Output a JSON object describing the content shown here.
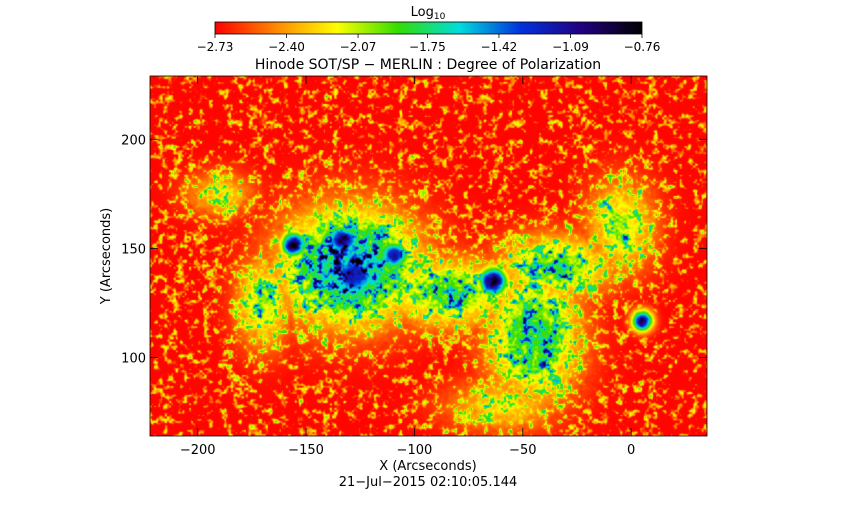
{
  "chart_data": {
    "type": "heatmap",
    "title": "Hinode SOT/SP − MERLIN : Degree of Polarization",
    "xlabel": "X (Arcseconds)",
    "ylabel": "Y (Arcseconds)",
    "timestamp": "21−Jul−2015 02:10:05.144",
    "xlim": [
      -222,
      35
    ],
    "ylim": [
      64,
      229
    ],
    "xticks": [
      -200,
      -150,
      -100,
      -50,
      0
    ],
    "xtick_labels": [
      "−200",
      "−150",
      "−100",
      "−50",
      "0"
    ],
    "yticks": [
      100,
      150,
      200
    ],
    "ytick_labels": [
      "100",
      "150",
      "200"
    ],
    "colorbar": {
      "label_base": "Log",
      "label_sub": "10",
      "range": [
        -2.73,
        -0.76
      ],
      "ticks": [
        -2.73,
        -2.4,
        -2.07,
        -1.75,
        -1.42,
        -1.09,
        -0.76
      ],
      "tick_labels": [
        "−2.73",
        "−2.40",
        "−2.07",
        "−1.75",
        "−1.42",
        "−1.09",
        "−0.76"
      ],
      "colormap": [
        "#ff0000",
        "#ff8800",
        "#ffff00",
        "#33dd00",
        "#00dddd",
        "#0033dd",
        "#220080",
        "#000000"
      ]
    },
    "field": {
      "background": -2.72,
      "spots": [
        {
          "x": -156,
          "y": 152,
          "sx": 6,
          "sy": 6,
          "peak": -0.8
        },
        {
          "x": -133,
          "y": 154,
          "sx": 9,
          "sy": 7,
          "peak": -0.95
        },
        {
          "x": -128,
          "y": 138,
          "sx": 13,
          "sy": 12,
          "peak": -1.1
        },
        {
          "x": -110,
          "y": 147,
          "sx": 8,
          "sy": 7,
          "peak": -1.15
        },
        {
          "x": -64,
          "y": 135,
          "sx": 7,
          "sy": 7,
          "peak": -0.8
        },
        {
          "x": 5,
          "y": 117,
          "sx": 5,
          "sy": 5,
          "peak": -0.9
        }
      ],
      "plage": [
        {
          "x": -130,
          "y": 142,
          "sx": 30,
          "sy": 25,
          "peak": -1.35
        },
        {
          "x": -85,
          "y": 130,
          "sx": 28,
          "sy": 15,
          "peak": -1.8
        },
        {
          "x": -45,
          "y": 110,
          "sx": 20,
          "sy": 28,
          "peak": -1.7
        },
        {
          "x": -35,
          "y": 142,
          "sx": 25,
          "sy": 14,
          "peak": -1.85
        },
        {
          "x": -5,
          "y": 160,
          "sx": 15,
          "sy": 20,
          "peak": -2.0
        },
        {
          "x": -170,
          "y": 125,
          "sx": 12,
          "sy": 20,
          "peak": -2.0
        },
        {
          "x": -190,
          "y": 175,
          "sx": 15,
          "sy": 10,
          "peak": -2.2
        },
        {
          "x": -60,
          "y": 78,
          "sx": 25,
          "sy": 12,
          "peak": -2.2
        }
      ]
    }
  }
}
